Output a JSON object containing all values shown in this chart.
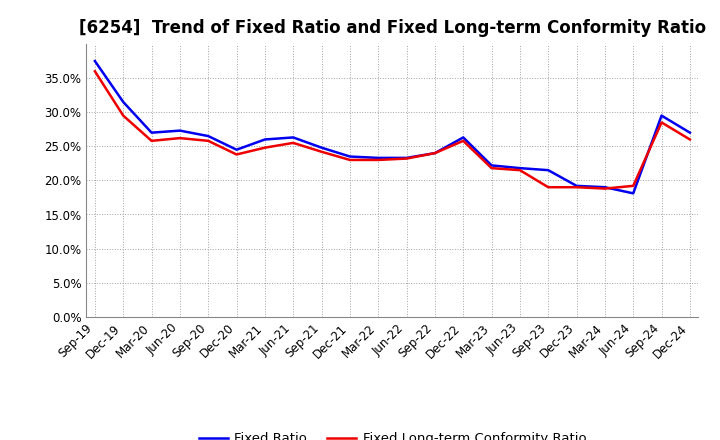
{
  "title": "[6254]  Trend of Fixed Ratio and Fixed Long-term Conformity Ratio",
  "x_labels": [
    "Sep-19",
    "Dec-19",
    "Mar-20",
    "Jun-20",
    "Sep-20",
    "Dec-20",
    "Mar-21",
    "Jun-21",
    "Sep-21",
    "Dec-21",
    "Mar-22",
    "Jun-22",
    "Sep-22",
    "Dec-22",
    "Mar-23",
    "Jun-23",
    "Sep-23",
    "Dec-23",
    "Mar-24",
    "Jun-24",
    "Sep-24",
    "Dec-24"
  ],
  "fixed_ratio": [
    0.375,
    0.315,
    0.27,
    0.273,
    0.265,
    0.245,
    0.26,
    0.263,
    0.248,
    0.235,
    0.233,
    0.233,
    0.24,
    0.263,
    0.222,
    0.218,
    0.215,
    0.192,
    0.19,
    0.181,
    0.295,
    0.27
  ],
  "fixed_lt_conformity": [
    0.36,
    0.295,
    0.258,
    0.262,
    0.258,
    0.238,
    0.248,
    0.255,
    0.242,
    0.23,
    0.23,
    0.232,
    0.24,
    0.258,
    0.218,
    0.215,
    0.19,
    0.19,
    0.188,
    0.192,
    0.285,
    0.26
  ],
  "fixed_ratio_color": "#0000EE",
  "fixed_lt_conformity_color": "#EE0000",
  "line_width": 1.8,
  "ylim": [
    0.0,
    0.4
  ],
  "yticks": [
    0.0,
    0.05,
    0.1,
    0.15,
    0.2,
    0.25,
    0.3,
    0.35
  ],
  "background_color": "#FFFFFF",
  "plot_area_color": "#FFFFFF",
  "grid_color": "#999999",
  "legend_fixed_ratio": "Fixed Ratio",
  "legend_fixed_lt": "Fixed Long-term Conformity Ratio",
  "title_fontsize": 12,
  "tick_fontsize": 8.5,
  "legend_fontsize": 9.5
}
